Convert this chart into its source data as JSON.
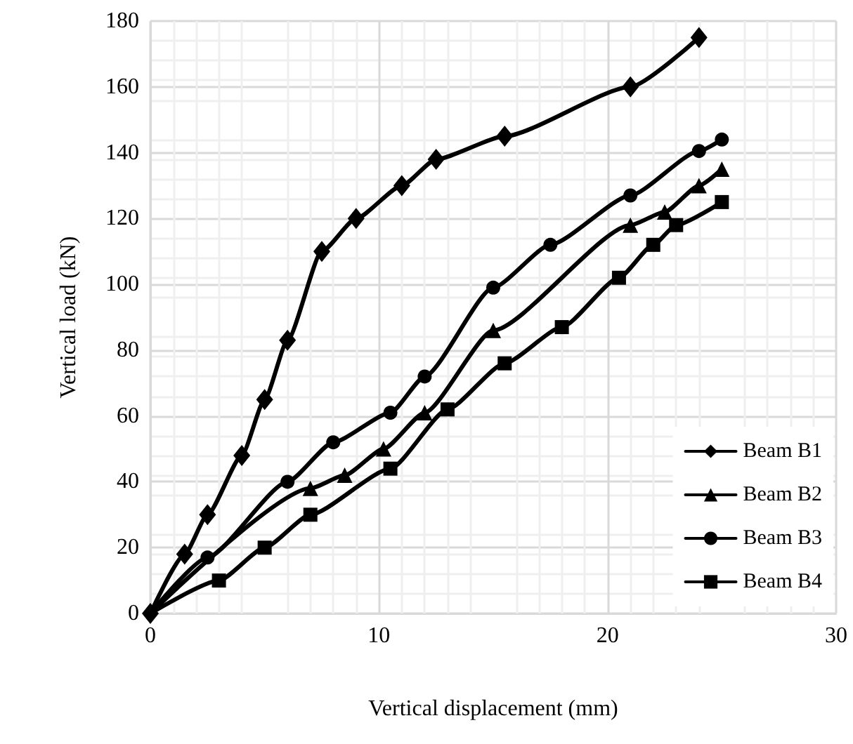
{
  "chart_data": {
    "type": "line",
    "xlabel": "Vertical displacement (mm)",
    "ylabel": "Vertical load (kN)",
    "xlim": [
      0,
      30
    ],
    "xticks": [
      0,
      10,
      20,
      30
    ],
    "ylim": [
      0,
      180
    ],
    "yticks": [
      0,
      20,
      40,
      60,
      80,
      100,
      120,
      140,
      160,
      180
    ],
    "grid": true,
    "legend": "bottom right",
    "line_style": "solid",
    "series": [
      {
        "name": "Beam B1",
        "color": "#000000",
        "marker": "diamond",
        "x": [
          0,
          1.5,
          2.5,
          4,
          5,
          6,
          7.5,
          9,
          11,
          12.5,
          15.5,
          21,
          24
        ],
        "values": [
          0,
          18,
          30,
          48,
          65,
          83,
          110,
          120,
          130,
          138,
          145,
          160,
          175
        ]
      },
      {
        "name": "Beam B2",
        "color": "#000000",
        "marker": "triangle",
        "x": [
          0,
          7,
          8.5,
          10.2,
          12,
          15,
          21,
          22.5,
          24,
          25
        ],
        "values": [
          0,
          38,
          42,
          50,
          61,
          86,
          118,
          122,
          130,
          135
        ]
      },
      {
        "name": "Beam B3",
        "color": "#000000",
        "marker": "circle",
        "x": [
          0,
          2.5,
          6,
          8,
          10.5,
          12,
          15,
          17.5,
          21,
          24,
          25
        ],
        "values": [
          0,
          17,
          40,
          52,
          61,
          72,
          99,
          112,
          127,
          140.5,
          144
        ]
      },
      {
        "name": "Beam B4",
        "color": "#000000",
        "marker": "square",
        "x": [
          0,
          3,
          5,
          7,
          10.5,
          13,
          15.5,
          18,
          20.5,
          22,
          23,
          25
        ],
        "values": [
          0,
          10,
          20,
          30,
          44,
          62,
          76,
          87,
          102,
          112,
          118,
          125
        ]
      }
    ]
  }
}
